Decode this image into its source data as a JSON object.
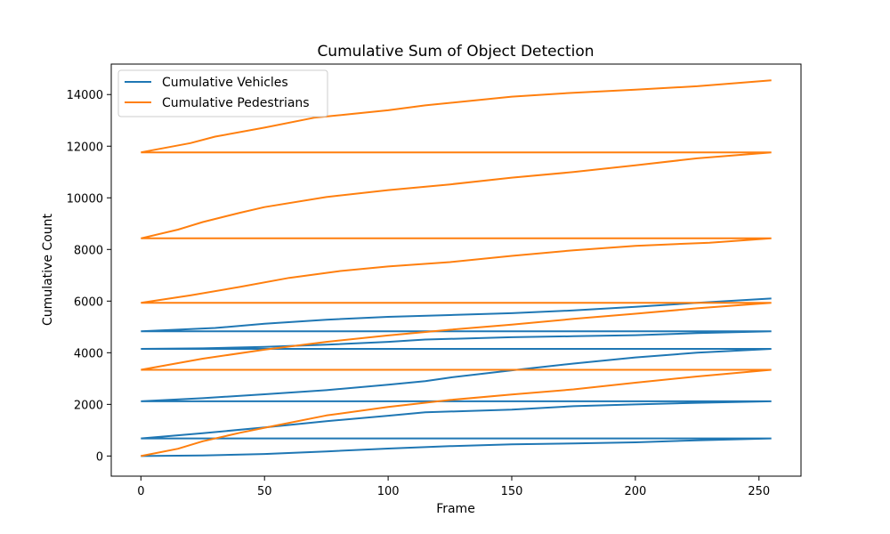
{
  "chart_data": {
    "type": "line",
    "title": "Cumulative Sum of Object Detection",
    "xlabel": "Frame",
    "ylabel": "Cumulative Count",
    "xlim": [
      -12,
      267
    ],
    "ylim": [
      -780,
      15180
    ],
    "xticks": [
      0,
      50,
      100,
      150,
      200,
      250
    ],
    "yticks": [
      0,
      2000,
      4000,
      6000,
      8000,
      10000,
      12000,
      14000
    ],
    "grid": false,
    "legend_position": "top-left",
    "series": [
      {
        "name": "Cumulative Vehicles",
        "color": "#1f77b4",
        "segments": [
          [
            [
              0,
              0
            ],
            [
              25,
              20
            ],
            [
              50,
              80
            ],
            [
              75,
              180
            ],
            [
              100,
              290
            ],
            [
              125,
              380
            ],
            [
              150,
              450
            ],
            [
              175,
              490
            ],
            [
              200,
              530
            ],
            [
              225,
              610
            ],
            [
              255,
              680
            ]
          ],
          [
            [
              255,
              680
            ],
            [
              0,
              680
            ]
          ],
          [
            [
              0,
              680
            ],
            [
              25,
              880
            ],
            [
              50,
              1110
            ],
            [
              75,
              1350
            ],
            [
              100,
              1560
            ],
            [
              115,
              1690
            ],
            [
              150,
              1800
            ],
            [
              175,
              1930
            ],
            [
              200,
              2000
            ],
            [
              225,
              2060
            ],
            [
              255,
              2120
            ]
          ],
          [
            [
              255,
              2120
            ],
            [
              0,
              2120
            ]
          ],
          [
            [
              0,
              2120
            ],
            [
              25,
              2240
            ],
            [
              50,
              2390
            ],
            [
              75,
              2550
            ],
            [
              100,
              2760
            ],
            [
              115,
              2900
            ],
            [
              125,
              3040
            ],
            [
              150,
              3320
            ],
            [
              175,
              3580
            ],
            [
              200,
              3820
            ],
            [
              225,
              4000
            ],
            [
              255,
              4150
            ]
          ],
          [
            [
              255,
              4150
            ],
            [
              0,
              4150
            ]
          ],
          [
            [
              0,
              4150
            ],
            [
              25,
              4170
            ],
            [
              50,
              4230
            ],
            [
              75,
              4310
            ],
            [
              100,
              4420
            ],
            [
              115,
              4510
            ],
            [
              150,
              4600
            ],
            [
              175,
              4640
            ],
            [
              200,
              4680
            ],
            [
              225,
              4760
            ],
            [
              255,
              4830
            ]
          ],
          [
            [
              255,
              4830
            ],
            [
              0,
              4830
            ]
          ],
          [
            [
              0,
              4830
            ],
            [
              30,
              4960
            ],
            [
              50,
              5120
            ],
            [
              75,
              5280
            ],
            [
              100,
              5390
            ],
            [
              125,
              5460
            ],
            [
              150,
              5530
            ],
            [
              175,
              5640
            ],
            [
              200,
              5780
            ],
            [
              225,
              5930
            ],
            [
              255,
              6100
            ]
          ]
        ]
      },
      {
        "name": "Cumulative Pedestrians",
        "color": "#ff7f0e",
        "segments": [
          [
            [
              0,
              0
            ],
            [
              15,
              280
            ],
            [
              25,
              570
            ],
            [
              40,
              900
            ],
            [
              55,
              1190
            ],
            [
              75,
              1570
            ],
            [
              100,
              1900
            ],
            [
              125,
              2170
            ],
            [
              150,
              2380
            ],
            [
              175,
              2580
            ],
            [
              200,
              2840
            ],
            [
              225,
              3080
            ],
            [
              255,
              3340
            ]
          ],
          [
            [
              255,
              3340
            ],
            [
              0,
              3340
            ]
          ],
          [
            [
              0,
              3340
            ],
            [
              25,
              3770
            ],
            [
              50,
              4120
            ],
            [
              75,
              4420
            ],
            [
              100,
              4670
            ],
            [
              125,
              4890
            ],
            [
              150,
              5090
            ],
            [
              175,
              5310
            ],
            [
              200,
              5510
            ],
            [
              225,
              5720
            ],
            [
              255,
              5930
            ]
          ],
          [
            [
              255,
              5930
            ],
            [
              0,
              5930
            ]
          ],
          [
            [
              0,
              5930
            ],
            [
              20,
              6220
            ],
            [
              40,
              6550
            ],
            [
              60,
              6900
            ],
            [
              80,
              7160
            ],
            [
              100,
              7340
            ],
            [
              125,
              7510
            ],
            [
              150,
              7750
            ],
            [
              175,
              7970
            ],
            [
              200,
              8140
            ],
            [
              230,
              8260
            ],
            [
              255,
              8430
            ]
          ],
          [
            [
              255,
              8430
            ],
            [
              0,
              8430
            ]
          ],
          [
            [
              0,
              8430
            ],
            [
              15,
              8770
            ],
            [
              25,
              9060
            ],
            [
              40,
              9420
            ],
            [
              50,
              9640
            ],
            [
              75,
              10030
            ],
            [
              100,
              10300
            ],
            [
              125,
              10520
            ],
            [
              150,
              10780
            ],
            [
              175,
              11000
            ],
            [
              200,
              11260
            ],
            [
              225,
              11530
            ],
            [
              255,
              11760
            ]
          ],
          [
            [
              255,
              11760
            ],
            [
              0,
              11760
            ]
          ],
          [
            [
              0,
              11760
            ],
            [
              20,
              12120
            ],
            [
              30,
              12370
            ],
            [
              50,
              12720
            ],
            [
              70,
              13100
            ],
            [
              100,
              13390
            ],
            [
              115,
              13580
            ],
            [
              150,
              13920
            ],
            [
              175,
              14070
            ],
            [
              200,
              14190
            ],
            [
              225,
              14320
            ],
            [
              255,
              14550
            ]
          ]
        ]
      }
    ]
  }
}
